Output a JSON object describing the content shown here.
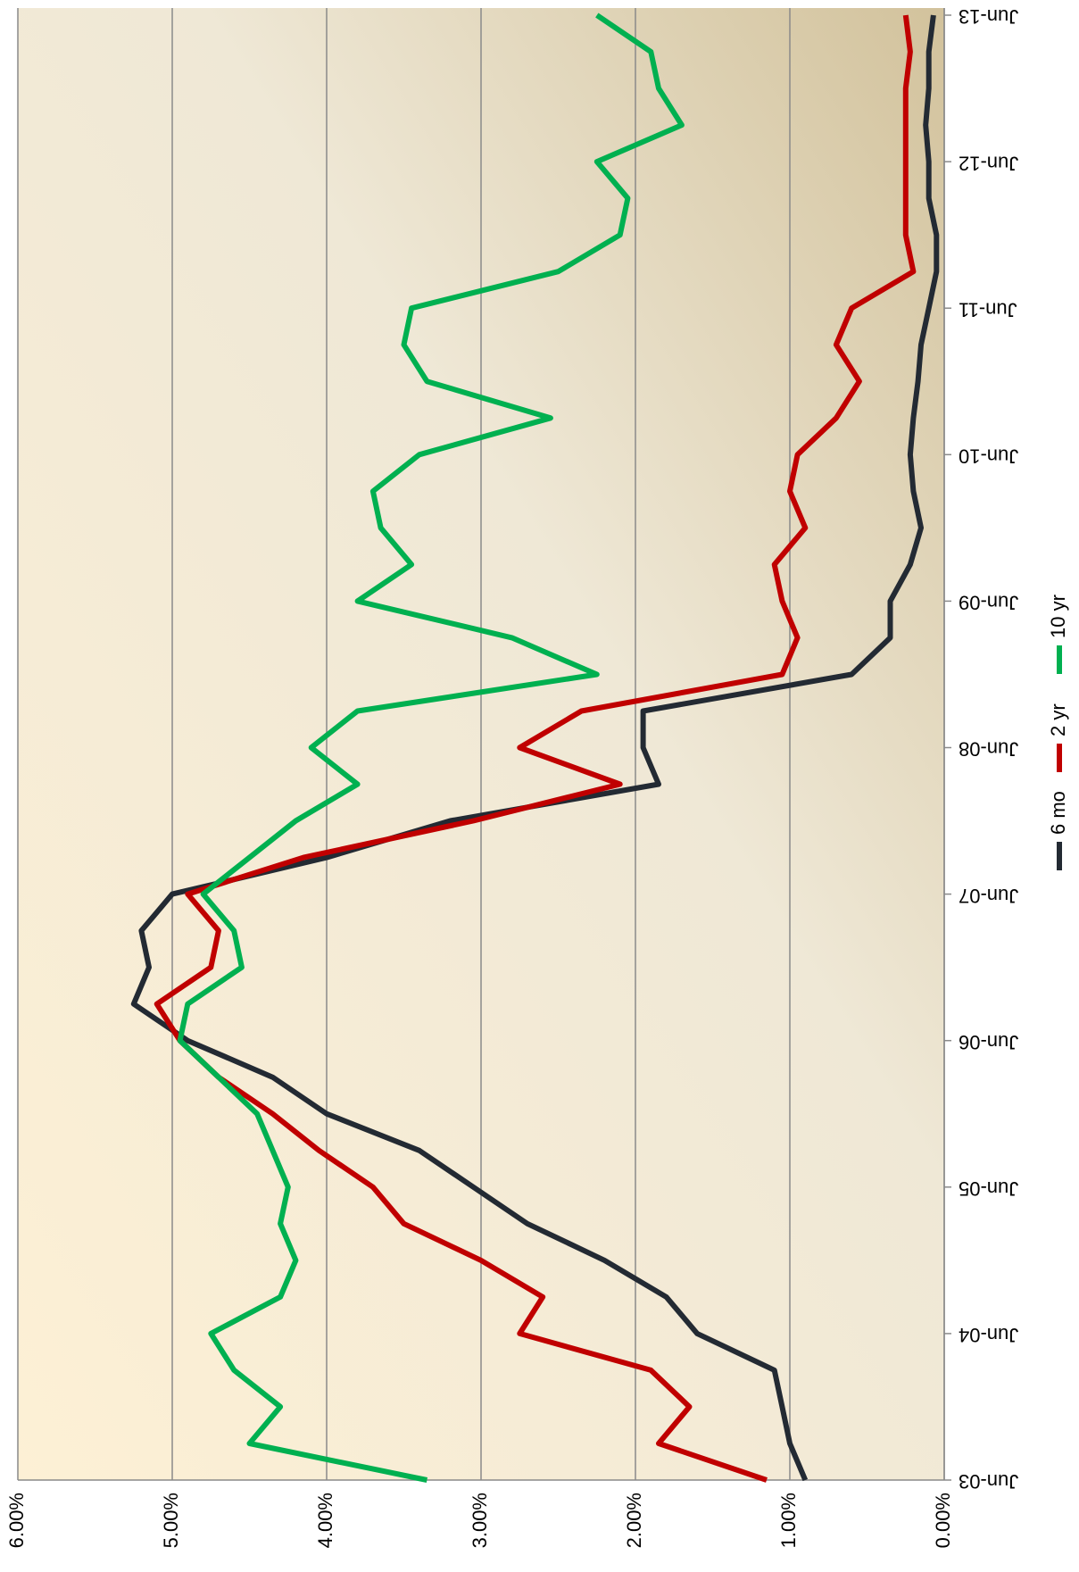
{
  "chart_data": {
    "type": "line",
    "categories": [
      "Jun-03",
      null,
      null,
      null,
      "Jun-04",
      null,
      null,
      null,
      "Jun-05",
      null,
      null,
      null,
      "Jun-06",
      null,
      null,
      null,
      "Jun-07",
      null,
      null,
      null,
      "Jun-08",
      null,
      null,
      null,
      "Jun-09",
      null,
      null,
      null,
      "Jun-10",
      null,
      null,
      null,
      "Jun-11",
      null,
      null,
      null,
      "Jun-12",
      null,
      null,
      null,
      "Jun-13"
    ],
    "series": [
      {
        "name": "6 mo",
        "color": "#232a33",
        "values": [
          0.9,
          1.0,
          1.05,
          1.1,
          1.6,
          1.8,
          2.2,
          2.7,
          3.05,
          3.4,
          4.0,
          4.35,
          4.9,
          5.25,
          5.15,
          5.2,
          5.0,
          4.0,
          3.2,
          1.85,
          1.95,
          1.95,
          0.6,
          0.35,
          0.35,
          0.22,
          0.15,
          0.2,
          0.22,
          0.2,
          0.17,
          0.15,
          0.1,
          0.05,
          0.05,
          0.1,
          0.1,
          0.12,
          0.1,
          0.1,
          0.07
        ]
      },
      {
        "name": "2 yr",
        "color": "#c00000",
        "values": [
          1.15,
          1.85,
          1.65,
          1.9,
          2.75,
          2.6,
          3.0,
          3.5,
          3.7,
          4.05,
          4.35,
          4.7,
          4.95,
          5.1,
          4.75,
          4.7,
          4.9,
          4.15,
          3.05,
          2.1,
          2.75,
          2.35,
          1.05,
          0.95,
          1.05,
          1.1,
          0.9,
          1.0,
          0.95,
          0.7,
          0.55,
          0.7,
          0.6,
          0.2,
          0.25,
          0.25,
          0.25,
          0.25,
          0.25,
          0.22,
          0.25
        ]
      },
      {
        "name": "10 yr",
        "color": "#00b050",
        "values": [
          3.35,
          4.5,
          4.3,
          4.6,
          4.75,
          4.3,
          4.2,
          4.3,
          4.25,
          4.35,
          4.45,
          4.7,
          4.95,
          4.9,
          4.55,
          4.6,
          4.8,
          4.5,
          4.2,
          3.8,
          4.1,
          3.8,
          2.25,
          2.8,
          3.8,
          3.45,
          3.65,
          3.7,
          3.4,
          2.55,
          3.35,
          3.5,
          3.45,
          2.5,
          2.1,
          2.05,
          2.25,
          1.7,
          1.85,
          1.9,
          2.25
        ]
      }
    ],
    "ylim": [
      0,
      6
    ],
    "yticks": [
      {
        "value": 0,
        "label": "0.00%"
      },
      {
        "value": 1,
        "label": "1.00%"
      },
      {
        "value": 2,
        "label": "2.00%"
      },
      {
        "value": 3,
        "label": "3.00%"
      },
      {
        "value": 4,
        "label": "4.00%"
      },
      {
        "value": 5,
        "label": "5.00%"
      },
      {
        "value": 6,
        "label": "6.00%"
      }
    ],
    "grid": true,
    "legend": "bottom",
    "orientation": "rotated"
  }
}
